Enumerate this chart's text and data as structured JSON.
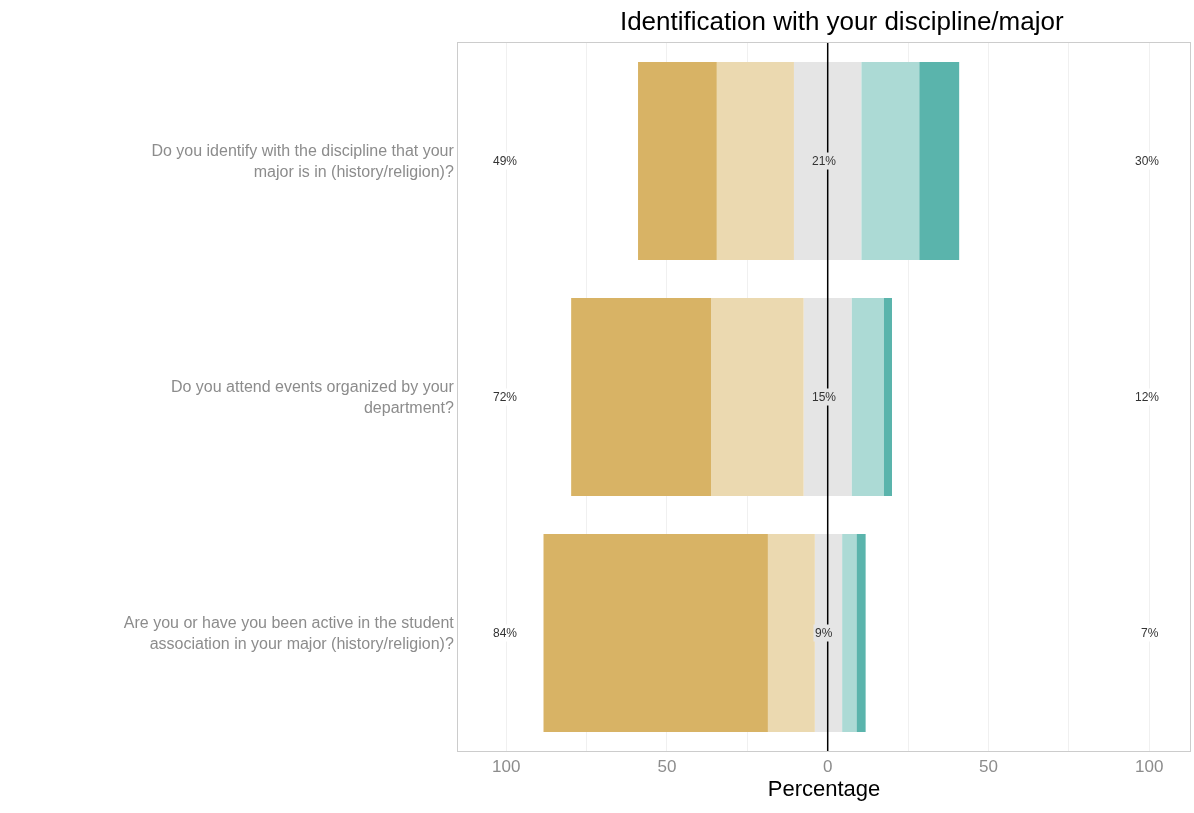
{
  "chart_data": {
    "type": "bar",
    "orientation": "horizontal",
    "stacked": true,
    "title": "Identification with your discipline/major",
    "xlabel": "Percentage",
    "categories": [
      "Do you identify with the discipline that your major is in (history/religion)?",
      "Do you attend events organized by your department?",
      "Are you or have you been active in the student association in your major (history/religion)?"
    ],
    "series": [
      {
        "color": "#e5e5e5",
        "values": [
          -10.5,
          -7.5,
          -4.0
        ]
      },
      {
        "color": "#ebd9b0",
        "values": [
          -24.0,
          -28.8,
          -14.6
        ]
      },
      {
        "color": "#d8b365",
        "values": [
          -24.5,
          -43.5,
          -69.8
        ]
      },
      {
        "color": "#e5e5e5",
        "values": [
          10.5,
          7.5,
          4.5
        ]
      },
      {
        "color": "#acdad5",
        "values": [
          18.0,
          10.0,
          4.5
        ]
      },
      {
        "color": "#5ab4ac",
        "values": [
          12.4,
          2.5,
          2.8
        ]
      }
    ],
    "xlim": [
      -115,
      112.7
    ],
    "xticks": [
      {
        "value": -100,
        "label": "100"
      },
      {
        "value": -75,
        "label": null
      },
      {
        "value": -50,
        "label": "50"
      },
      {
        "value": -25,
        "label": null
      },
      0,
      {
        "value": 25,
        "label": null
      },
      50,
      {
        "value": 75,
        "label": null
      },
      100
    ],
    "grid": "x",
    "ref_lines": [
      {
        "axis": "x",
        "value": 0,
        "color": "#000000"
      }
    ],
    "annotations": [
      "49%",
      "21%",
      "30%",
      "72%",
      "15%",
      "12%",
      "84%",
      "9%",
      "7%"
    ]
  }
}
